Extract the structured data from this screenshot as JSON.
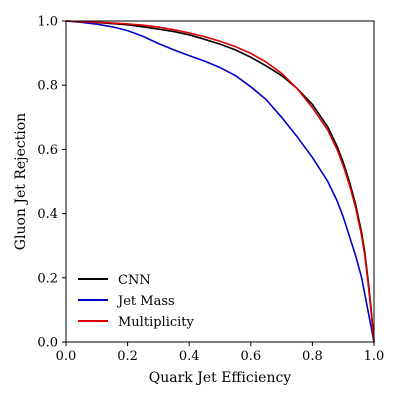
{
  "chart_data": {
    "type": "line",
    "xlabel": "Quark Jet Efficiency",
    "ylabel": "Gluon Jet Rejection",
    "xlim": [
      0.0,
      1.0
    ],
    "ylim": [
      0.0,
      1.0
    ],
    "xticks": [
      "0.0",
      "0.2",
      "0.4",
      "0.6",
      "0.8",
      "1.0"
    ],
    "yticks": [
      "0.0",
      "0.2",
      "0.4",
      "0.6",
      "0.8",
      "1.0"
    ],
    "grid": false,
    "legend_position": "lower-left",
    "series": [
      {
        "name": "CNN",
        "color": "#000000",
        "x": [
          0.0,
          0.05,
          0.1,
          0.15,
          0.2,
          0.25,
          0.3,
          0.35,
          0.4,
          0.45,
          0.5,
          0.55,
          0.6,
          0.65,
          0.7,
          0.75,
          0.8,
          0.85,
          0.88,
          0.9,
          0.92,
          0.94,
          0.96,
          0.97,
          0.98,
          0.99,
          1.0
        ],
        "y": [
          1.0,
          0.998,
          0.995,
          0.992,
          0.988,
          0.982,
          0.975,
          0.967,
          0.957,
          0.943,
          0.928,
          0.91,
          0.887,
          0.86,
          0.83,
          0.79,
          0.74,
          0.67,
          0.61,
          0.56,
          0.5,
          0.43,
          0.34,
          0.28,
          0.2,
          0.11,
          0.0
        ]
      },
      {
        "name": "Jet Mass",
        "color": "#0000cc",
        "x": [
          0.0,
          0.05,
          0.1,
          0.15,
          0.2,
          0.25,
          0.3,
          0.35,
          0.4,
          0.45,
          0.5,
          0.55,
          0.6,
          0.65,
          0.7,
          0.75,
          0.8,
          0.85,
          0.88,
          0.9,
          0.92,
          0.94,
          0.96,
          0.97,
          0.98,
          0.99,
          1.0
        ],
        "y": [
          1.0,
          0.996,
          0.99,
          0.982,
          0.97,
          0.952,
          0.93,
          0.91,
          0.892,
          0.875,
          0.855,
          0.83,
          0.795,
          0.755,
          0.7,
          0.64,
          0.575,
          0.5,
          0.44,
          0.39,
          0.33,
          0.27,
          0.2,
          0.15,
          0.1,
          0.05,
          0.0
        ]
      },
      {
        "name": "Multiplicity",
        "color": "#dd0000",
        "x": [
          0.0,
          0.05,
          0.1,
          0.15,
          0.2,
          0.25,
          0.3,
          0.35,
          0.4,
          0.45,
          0.5,
          0.55,
          0.6,
          0.65,
          0.7,
          0.75,
          0.8,
          0.85,
          0.88,
          0.9,
          0.92,
          0.94,
          0.96,
          0.97,
          0.98,
          0.99,
          1.0
        ],
        "y": [
          1.0,
          0.998,
          0.996,
          0.994,
          0.991,
          0.987,
          0.981,
          0.973,
          0.963,
          0.951,
          0.937,
          0.92,
          0.899,
          0.872,
          0.837,
          0.79,
          0.73,
          0.66,
          0.6,
          0.55,
          0.49,
          0.42,
          0.33,
          0.27,
          0.19,
          0.1,
          0.0
        ]
      }
    ]
  }
}
